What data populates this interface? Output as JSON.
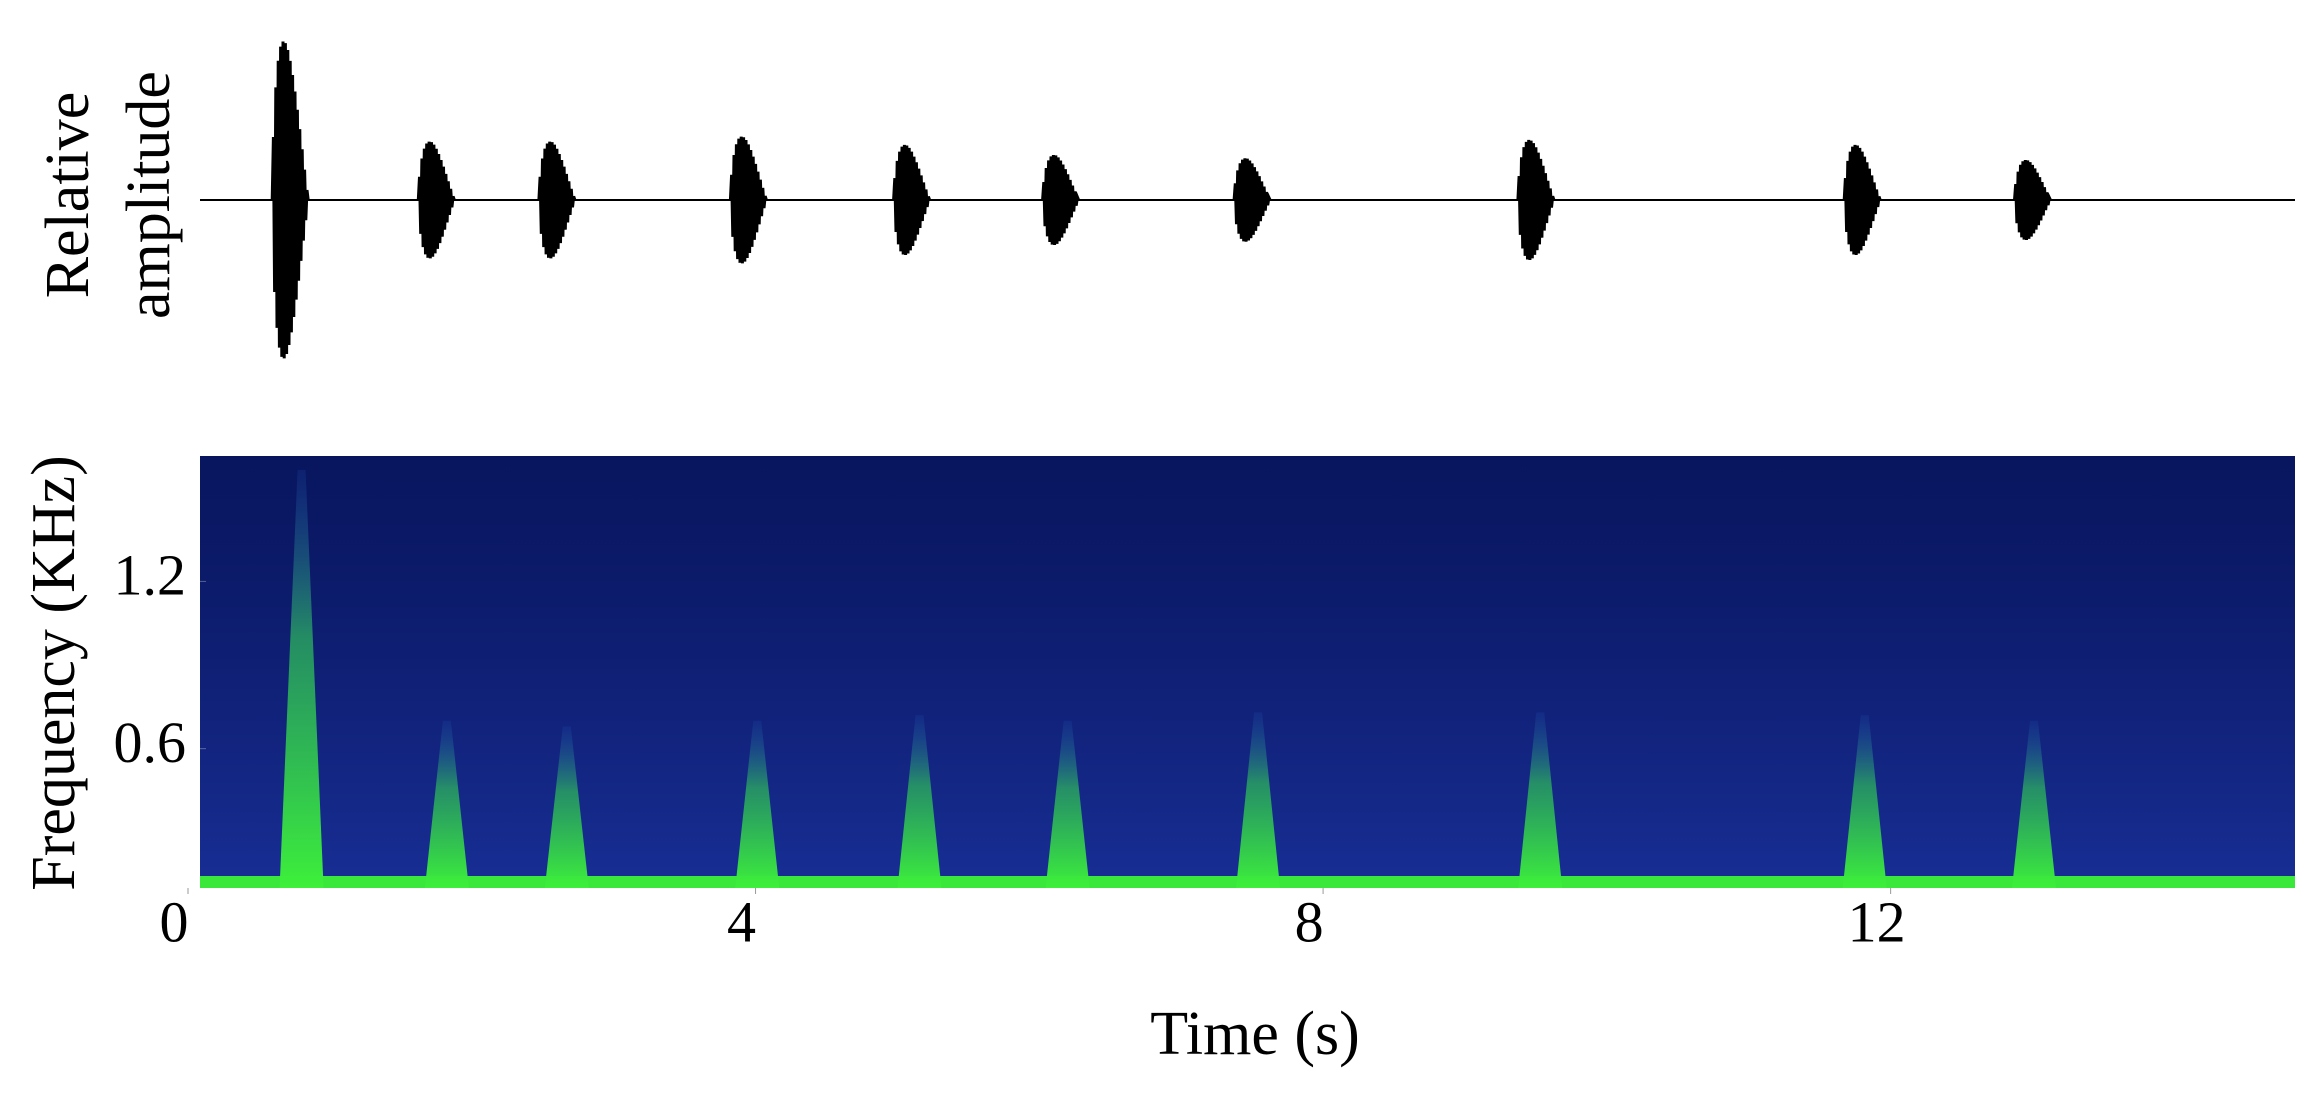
{
  "chart_data": [
    {
      "type": "waveform",
      "ylabel": [
        "Relative",
        "amplitude"
      ],
      "x": [
        0.72,
        1.75,
        2.6,
        3.95,
        5.1,
        6.15,
        7.5,
        9.5,
        11.8,
        13.0
      ],
      "values": [
        0.95,
        0.35,
        0.35,
        0.38,
        0.33,
        0.27,
        0.25,
        0.36,
        0.33,
        0.24
      ],
      "color": "#000000",
      "xlim": [
        0,
        14.85
      ],
      "ylim": [
        -1,
        1
      ]
    },
    {
      "type": "spectrogram",
      "ylabel": "Frequency (KHz)",
      "xlabel": "Time (s)",
      "x": [
        0.72,
        1.75,
        2.6,
        3.95,
        5.1,
        6.15,
        7.5,
        9.5,
        11.8,
        13.0
      ],
      "values": [
        1.6,
        0.7,
        0.68,
        0.7,
        0.72,
        0.7,
        0.73,
        0.73,
        0.72,
        0.7
      ],
      "color": "#39e83a",
      "background": "#0b1c7e",
      "xlim": [
        0,
        14.85
      ],
      "ylim": [
        0.1,
        1.65
      ],
      "xticks": [
        0,
        4,
        8,
        12
      ],
      "yticks": [
        0.6,
        1.2
      ]
    }
  ]
}
